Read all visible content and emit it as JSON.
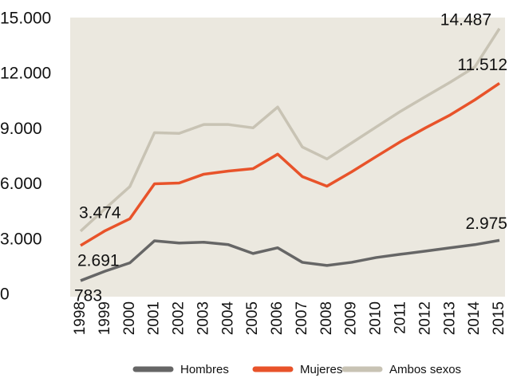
{
  "chart_data": {
    "type": "line",
    "x": [
      1998,
      1999,
      2000,
      2001,
      2002,
      2003,
      2004,
      2005,
      2006,
      2007,
      2008,
      2009,
      2010,
      2011,
      2012,
      2013,
      2014,
      2015
    ],
    "xlim": [
      1998,
      2015
    ],
    "ylim": [
      0,
      15000
    ],
    "yticks": [
      0,
      {
        "value": 3000,
        "label": "3.000"
      },
      {
        "value": 6000,
        "label": "6.000"
      },
      {
        "value": 9000,
        "label": "9.000"
      },
      {
        "value": 12000,
        "label": "12.000"
      },
      {
        "value": 15000,
        "label": "15.000"
      }
    ],
    "grid": false,
    "legend": "bottom-right",
    "series": [
      {
        "name": "Hombres",
        "color": "#666666",
        "values": [
          783,
          1300,
          1750,
          2950,
          2830,
          2870,
          2740,
          2260,
          2570,
          1780,
          1610,
          1780,
          2040,
          2220,
          2390,
          2570,
          2740,
          2975
        ],
        "value_labels": [
          "783",
          null,
          null,
          null,
          null,
          null,
          null,
          null,
          null,
          null,
          null,
          null,
          null,
          null,
          null,
          null,
          null,
          "2.975"
        ]
      },
      {
        "name": "Mujeres",
        "color": "#e8532a",
        "values": [
          2691,
          3500,
          4150,
          6050,
          6090,
          6570,
          6740,
          6870,
          7660,
          6440,
          5920,
          6700,
          7530,
          8350,
          9090,
          9790,
          10610,
          11512
        ],
        "value_labels": [
          "2.691",
          null,
          null,
          null,
          null,
          null,
          null,
          null,
          null,
          null,
          null,
          null,
          null,
          null,
          null,
          null,
          null,
          "11.512"
        ]
      },
      {
        "name": "Ambos sexos",
        "color": "#c8c3b4",
        "values": [
          3474,
          4700,
          5900,
          8830,
          8790,
          9270,
          9270,
          9090,
          10220,
          8050,
          7400,
          8270,
          9140,
          10000,
          10790,
          11570,
          12400,
          14487
        ],
        "value_labels": [
          "3.474",
          null,
          null,
          null,
          null,
          null,
          null,
          null,
          null,
          null,
          null,
          null,
          null,
          null,
          null,
          null,
          null,
          "14.487"
        ]
      }
    ]
  }
}
